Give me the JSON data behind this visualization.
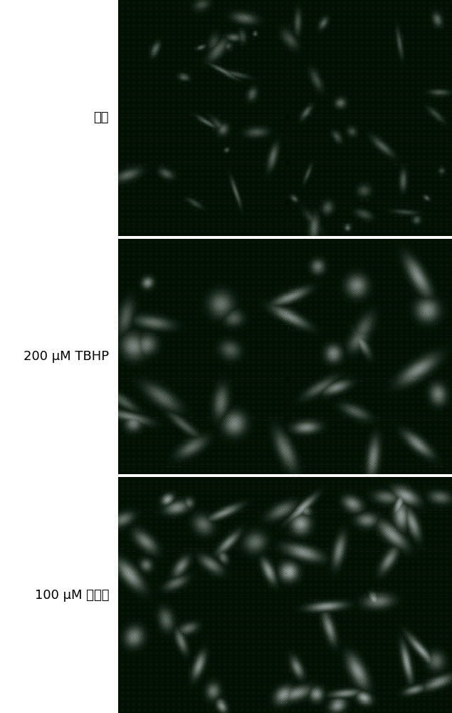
{
  "labels": [
    "对照",
    "200 μM TBHP",
    "100 μM 甲萌醜"
  ],
  "background_color": "#ffffff",
  "label_fontsize": 13,
  "seed": 42,
  "img_params": [
    {
      "intensity": 0.55,
      "cell_count": 50,
      "min_r": 5,
      "max_r": 14,
      "elongated": true,
      "seed_off": 0
    },
    {
      "intensity": 0.8,
      "cell_count": 35,
      "min_r": 10,
      "max_r": 28,
      "elongated": true,
      "seed_off": 100
    },
    {
      "intensity": 0.95,
      "cell_count": 58,
      "min_r": 9,
      "max_r": 22,
      "elongated": true,
      "seed_off": 200
    }
  ],
  "checker_dark_r": 0,
  "checker_dark_g": 30,
  "checker_dark_b": 0,
  "checker_light_r": 15,
  "checker_light_g": 25,
  "checker_light_b": 15
}
